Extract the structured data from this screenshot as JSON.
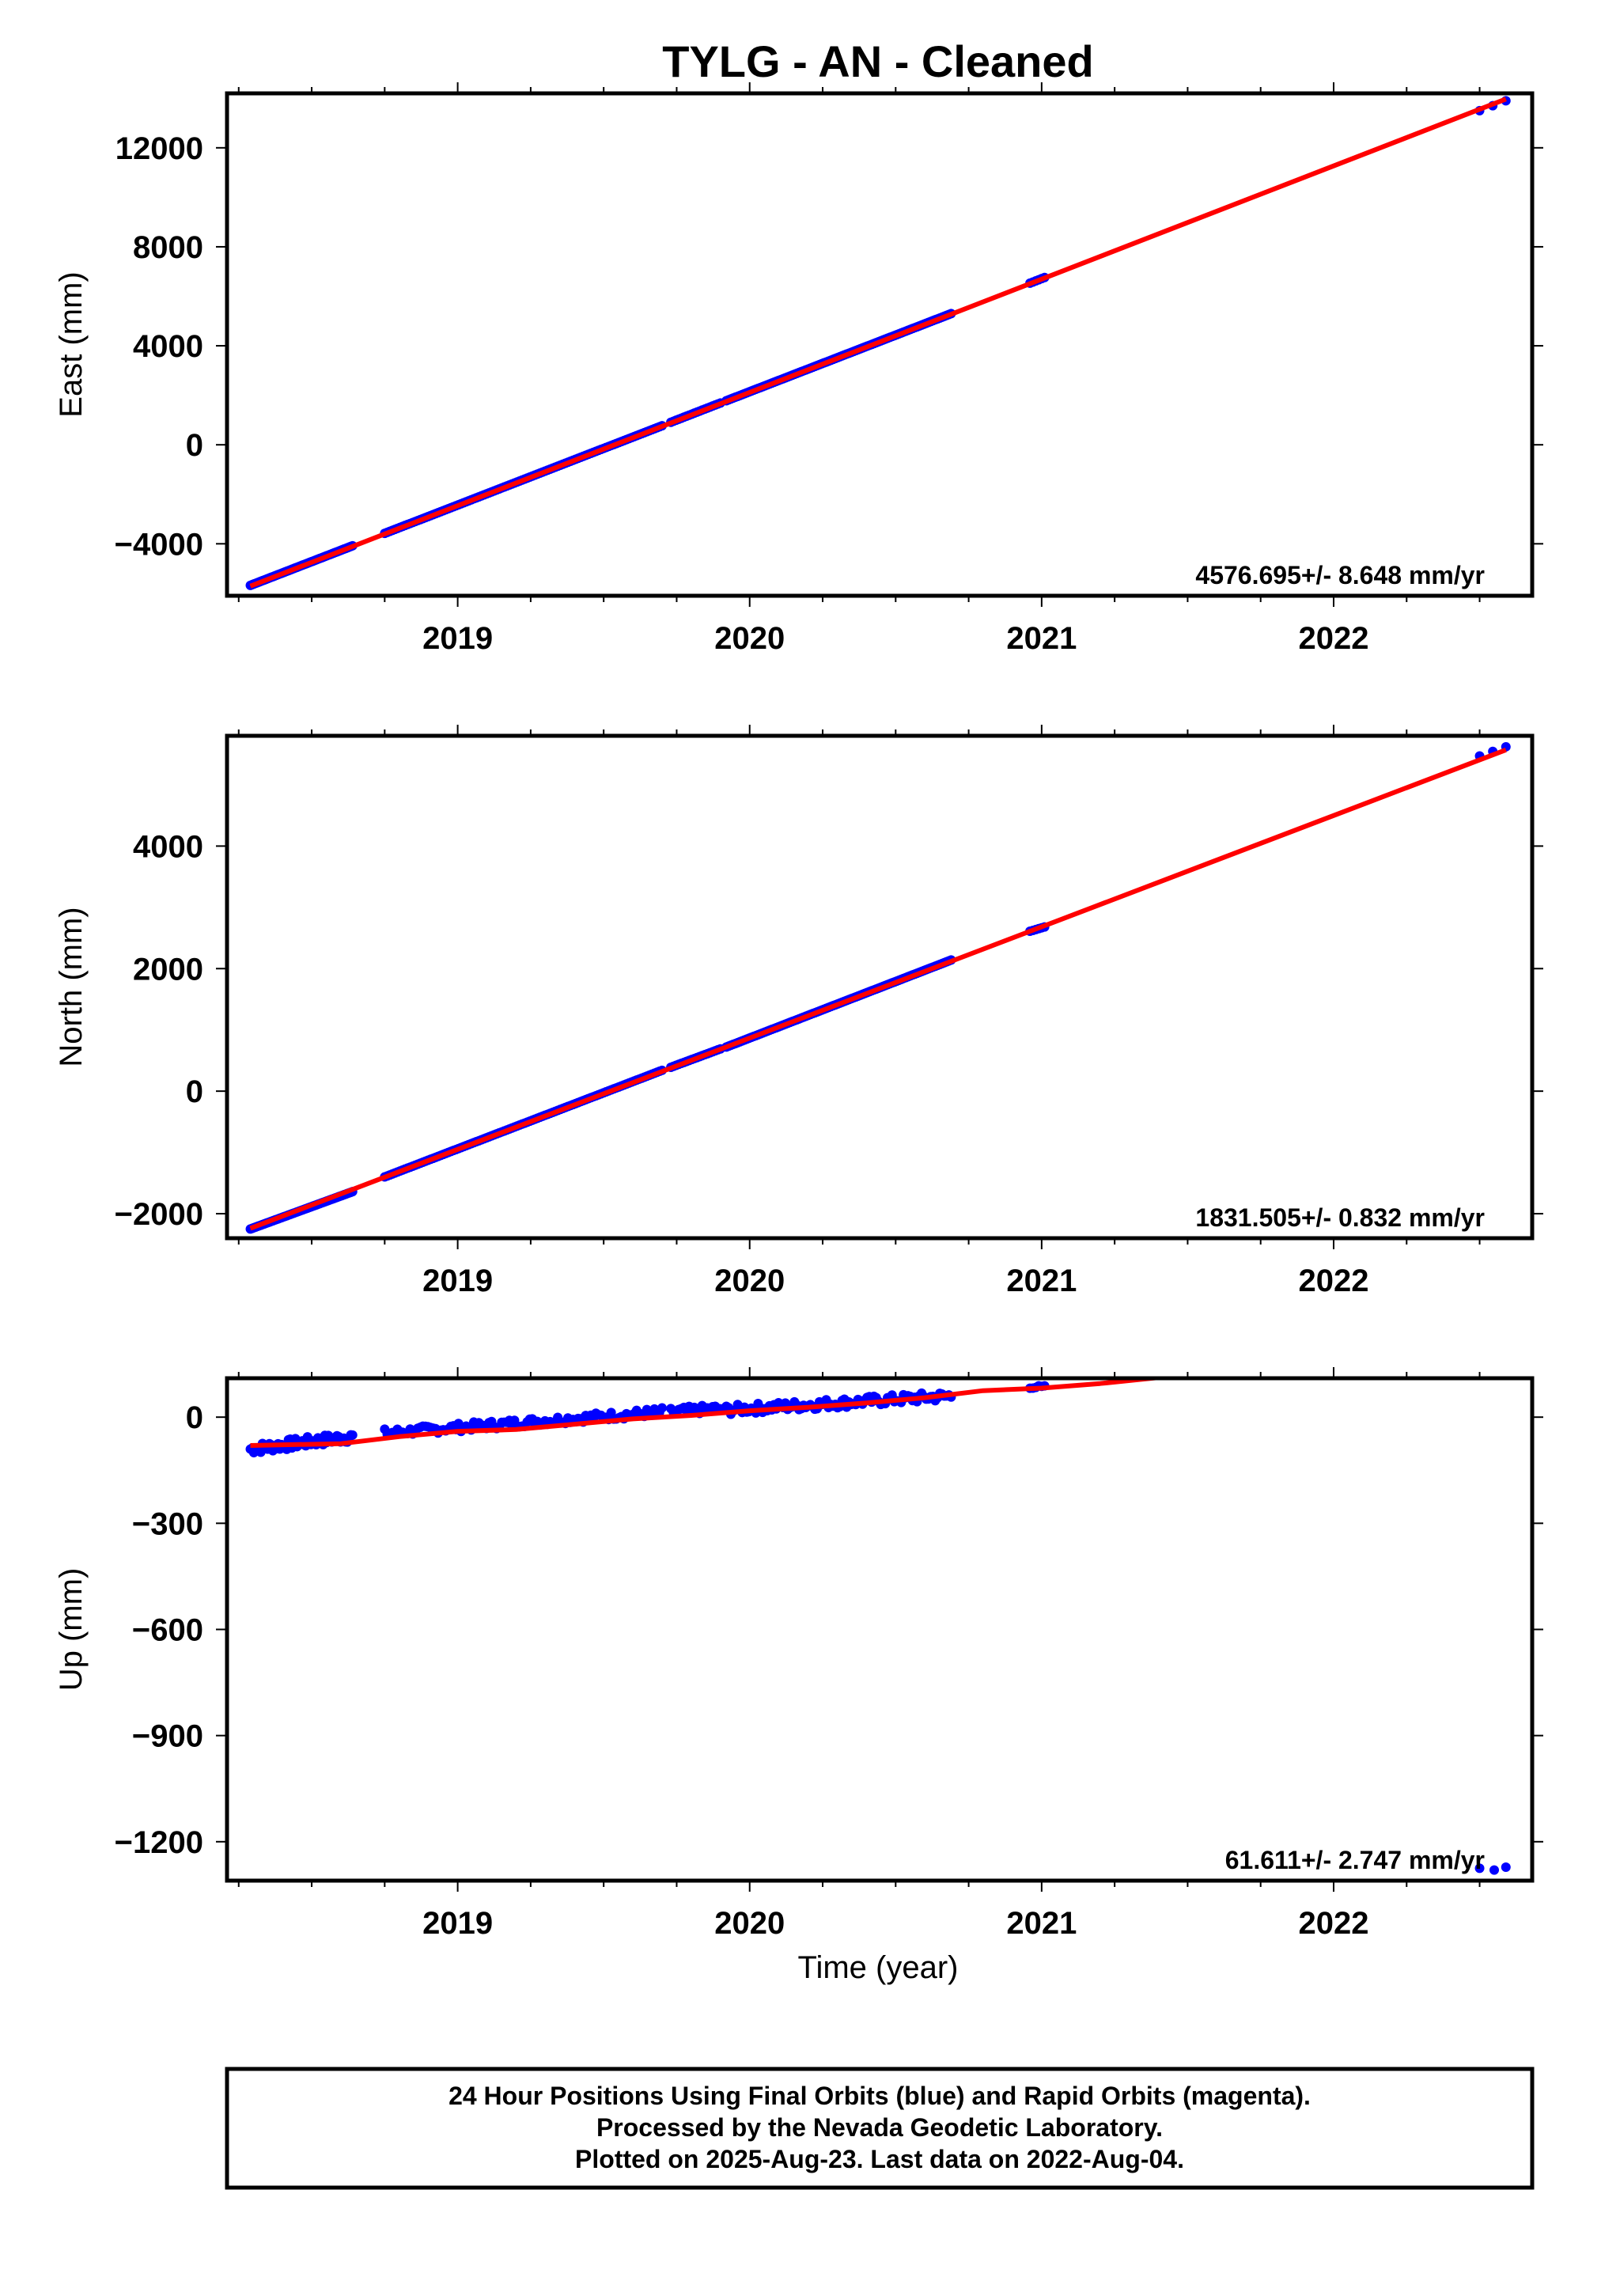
{
  "title": "TYLG  - AN - Cleaned",
  "x_axis_label": "Time (year)",
  "footer": {
    "line1": "24 Hour Positions Using Final Orbits (blue) and Rapid Orbits (magenta).",
    "line2": "Processed by the Nevada Geodetic Laboratory.",
    "line3": "Plotted on 2025-Aug-23. Last data on 2022-Aug-04."
  },
  "colors": {
    "final_orbits": "#0000ff",
    "fit_line": "#ff0000",
    "axes": "#000000"
  },
  "chart_data": [
    {
      "type": "scatter",
      "ylabel": "East (mm)",
      "xlim": [
        2018.21,
        2022.68
      ],
      "ylim": [
        -6100,
        14200
      ],
      "x_ticks": [
        2019,
        2020,
        2021,
        2022
      ],
      "y_ticks": [
        -4000,
        0,
        4000,
        8000,
        12000
      ],
      "y_tick_labels": [
        "−4000",
        "0",
        "4000",
        "8000",
        "12000"
      ],
      "rate_label": "4576.695+/- 8.648 mm/yr",
      "series": [
        {
          "role": "daily positions",
          "color": "#0000ff",
          "segments": [
            {
              "x0": 2018.29,
              "x1": 2018.64,
              "y0": -5680,
              "y1": -4080,
              "n": 60
            },
            {
              "x0": 2018.75,
              "x1": 2019.7,
              "y0": -3580,
              "y1": 770,
              "n": 110
            },
            {
              "x0": 2019.73,
              "x1": 2019.9,
              "y0": 910,
              "y1": 1690,
              "n": 20
            },
            {
              "x0": 2019.92,
              "x1": 2020.69,
              "y0": 1780,
              "y1": 5300,
              "n": 100
            },
            {
              "x0": 2020.96,
              "x1": 2021.01,
              "y0": 6530,
              "y1": 6760,
              "n": 6
            },
            {
              "x0": 2022.5,
              "x1": 2022.59,
              "y0": 13500,
              "y1": 13900,
              "n": 3
            }
          ]
        },
        {
          "role": "fit",
          "color": "#ff0000",
          "points": [
            [
              2018.29,
              -5710
            ],
            [
              2022.59,
              13970
            ]
          ]
        }
      ]
    },
    {
      "type": "scatter",
      "ylabel": "North (mm)",
      "xlim": [
        2018.21,
        2022.68
      ],
      "ylim": [
        -2400,
        5800
      ],
      "x_ticks": [
        2019,
        2020,
        2021,
        2022
      ],
      "y_ticks": [
        -2000,
        0,
        2000,
        4000
      ],
      "y_tick_labels": [
        "−2000",
        "0",
        "2000",
        "4000"
      ],
      "rate_label": "1831.505+/- 0.832 mm/yr",
      "series": [
        {
          "role": "daily positions",
          "color": "#0000ff",
          "segments": [
            {
              "x0": 2018.29,
              "x1": 2018.64,
              "y0": -2250,
              "y1": -1640,
              "n": 60
            },
            {
              "x0": 2018.75,
              "x1": 2019.7,
              "y0": -1400,
              "y1": 340,
              "n": 110
            },
            {
              "x0": 2019.73,
              "x1": 2019.9,
              "y0": 390,
              "y1": 690,
              "n": 20
            },
            {
              "x0": 2019.92,
              "x1": 2020.69,
              "y0": 720,
              "y1": 2140,
              "n": 100
            },
            {
              "x0": 2020.96,
              "x1": 2021.01,
              "y0": 2610,
              "y1": 2680,
              "n": 6
            },
            {
              "x0": 2022.5,
              "x1": 2022.59,
              "y0": 5470,
              "y1": 5620,
              "n": 3
            }
          ]
        },
        {
          "role": "fit",
          "color": "#ff0000",
          "points": [
            [
              2018.29,
              -2240
            ],
            [
              2022.59,
              5570
            ]
          ]
        }
      ]
    },
    {
      "type": "scatter",
      "ylabel": "Up (mm)",
      "xlim": [
        2018.21,
        2022.68
      ],
      "ylim": [
        -1310,
        110
      ],
      "x_ticks": [
        2019,
        2020,
        2021,
        2022
      ],
      "y_ticks": [
        -1200,
        -900,
        -600,
        -300,
        0
      ],
      "y_tick_labels": [
        "−1200",
        "−900",
        "−600",
        "−300",
        "0"
      ],
      "rate_label": "61.611+/- 2.747 mm/yr",
      "series": [
        {
          "role": "daily positions",
          "color": "#0000ff",
          "segments": [
            {
              "x0": 2018.29,
              "x1": 2018.64,
              "y0": -90,
              "y1": -55,
              "n": 60,
              "scatter": 15
            },
            {
              "x0": 2018.75,
              "x1": 2019.7,
              "y0": -45,
              "y1": 15,
              "n": 110,
              "scatter": 12
            },
            {
              "x0": 2019.73,
              "x1": 2019.9,
              "y0": 15,
              "y1": 25,
              "n": 20,
              "scatter": 12
            },
            {
              "x0": 2019.92,
              "x1": 2020.69,
              "y0": 20,
              "y1": 60,
              "n": 100,
              "scatter": 14
            },
            {
              "x0": 2020.96,
              "x1": 2021.01,
              "y0": 85,
              "y1": 85,
              "n": 6,
              "scatter": 4
            }
          ],
          "points": [
            [
              2022.5,
              -1275
            ],
            [
              2022.55,
              -1280
            ],
            [
              2022.59,
              -1272
            ]
          ]
        },
        {
          "role": "fit",
          "color": "#ff0000",
          "points": [
            [
              2018.29,
              -80
            ],
            [
              2018.6,
              -75
            ],
            [
              2018.8,
              -55
            ],
            [
              2019.0,
              -40
            ],
            [
              2019.2,
              -35
            ],
            [
              2019.4,
              -20
            ],
            [
              2019.6,
              -5
            ],
            [
              2019.8,
              5
            ],
            [
              2020.0,
              18
            ],
            [
              2020.2,
              28
            ],
            [
              2020.4,
              40
            ],
            [
              2020.6,
              55
            ],
            [
              2020.8,
              75
            ],
            [
              2021.0,
              82
            ],
            [
              2021.2,
              95
            ],
            [
              2021.4,
              112
            ]
          ]
        }
      ]
    }
  ]
}
